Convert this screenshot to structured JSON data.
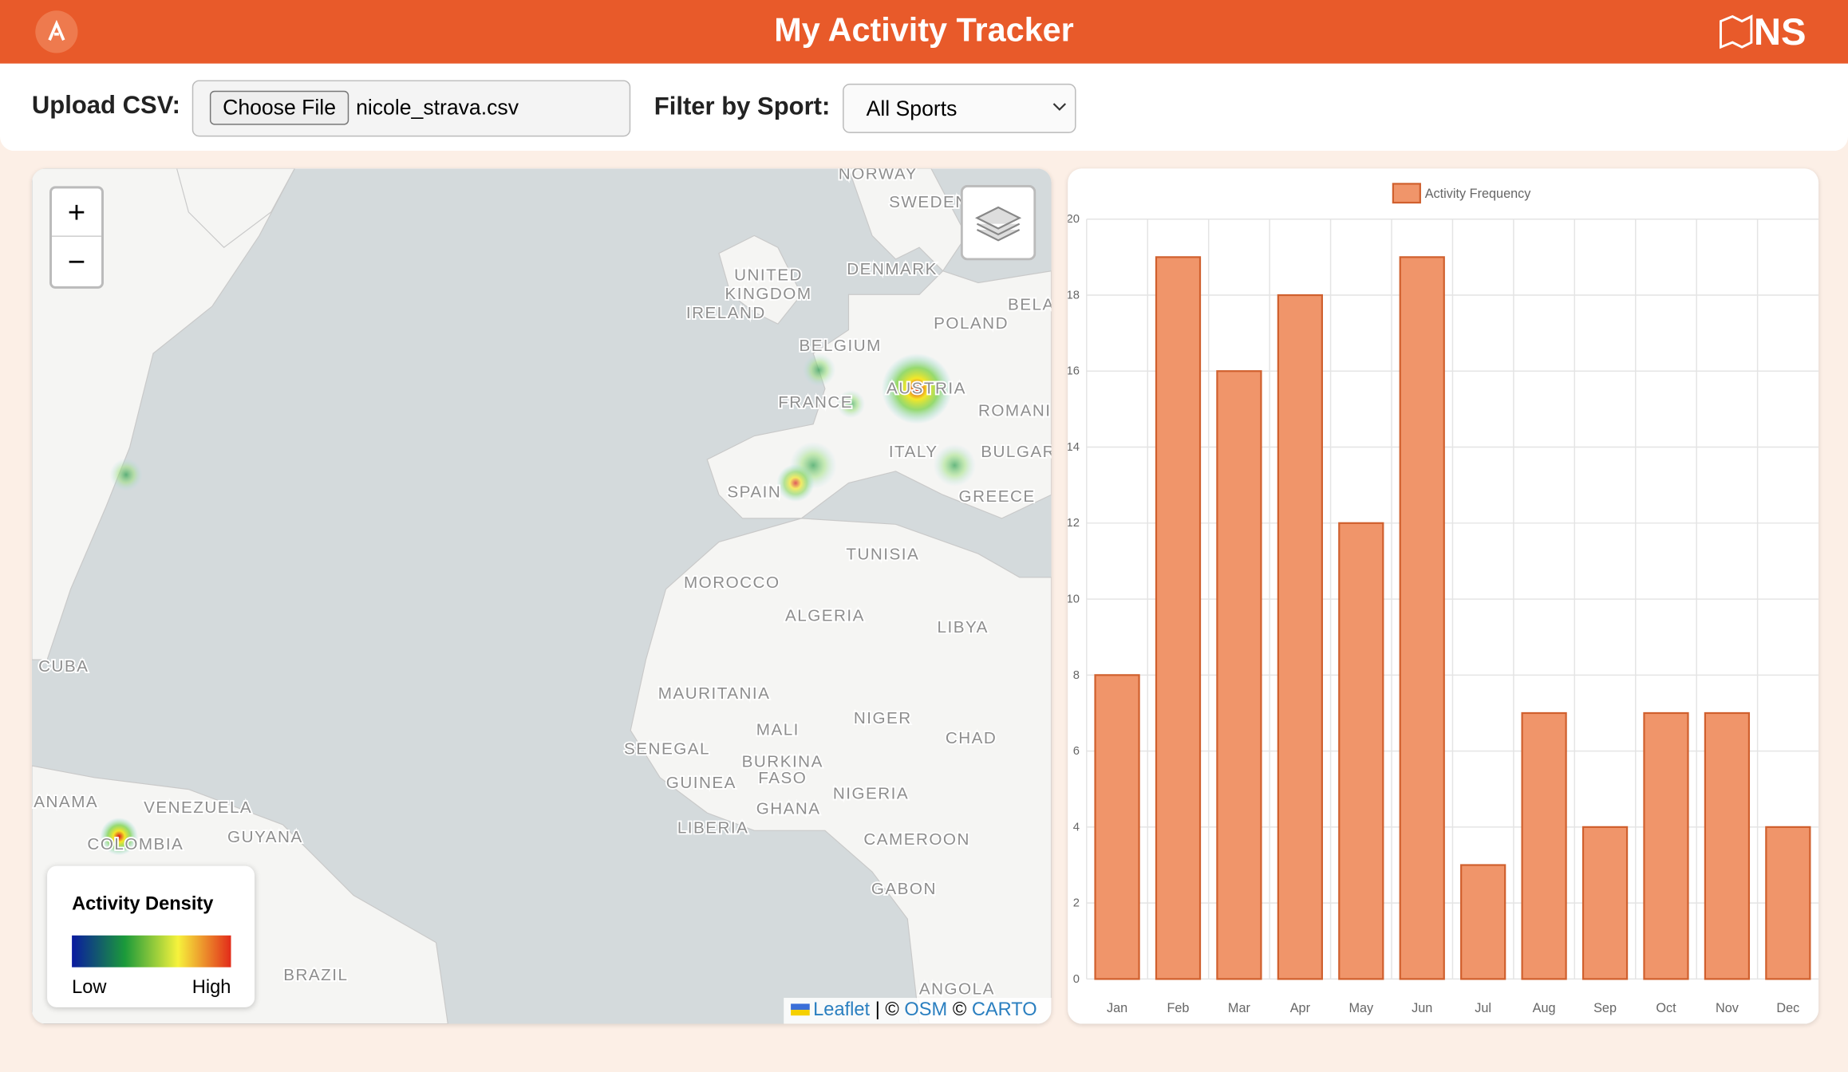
{
  "header": {
    "title": "My Activity Tracker",
    "logo_text": "NS"
  },
  "controls": {
    "upload_label": "Upload CSV:",
    "choose_file": "Choose File",
    "file_name": "nicole_strava.csv",
    "filter_label": "Filter by Sport:",
    "sport_selected": "All Sports"
  },
  "map": {
    "zoom_in": "+",
    "zoom_out": "−",
    "labels": [
      "NORWAY",
      "SWEDEN",
      "UNITED",
      "KINGDOM",
      "IRELAND",
      "DENMARK",
      "BELA",
      "POLAND",
      "BELGIUM",
      "FRANCE",
      "AUSTRIA",
      "ROMANI",
      "ITALY",
      "BULGAR",
      "SPAIN",
      "GREECE",
      "TUNISIA",
      "MOROCCO",
      "ALGERIA",
      "LIBYA",
      "CUBA",
      "MAURITANIA",
      "MALI",
      "NIGER",
      "CHAD",
      "SENEGAL",
      "BURKINA",
      "FASO",
      "GUINEA",
      "NIGERIA",
      "ANAMA",
      "VENEZUELA",
      "GHANA",
      "LIBERIA",
      "GUYANA",
      "COLOMBIA",
      "CAMEROON",
      "GABON",
      "BRAZIL",
      "ANGOLA"
    ],
    "legend": {
      "title": "Activity Density",
      "low": "Low",
      "high": "High"
    },
    "attribution": {
      "leaflet": "Leaflet",
      "separator": "| ©",
      "osm": "OSM",
      "copyright": "©",
      "carto": "CARTO"
    }
  },
  "chart_data": {
    "type": "bar",
    "categories": [
      "Jan",
      "Feb",
      "Mar",
      "Apr",
      "May",
      "Jun",
      "Jul",
      "Aug",
      "Sep",
      "Oct",
      "Nov",
      "Dec"
    ],
    "series": [
      {
        "name": "Activity Frequency",
        "color": "#f0956a",
        "values": [
          8,
          19,
          16,
          18,
          12,
          19,
          3,
          7,
          4,
          7,
          7,
          4
        ]
      }
    ],
    "ylim": [
      0,
      20
    ],
    "yticks": [
      0,
      2,
      4,
      6,
      8,
      10,
      12,
      14,
      16,
      18,
      20
    ],
    "grid": true
  }
}
